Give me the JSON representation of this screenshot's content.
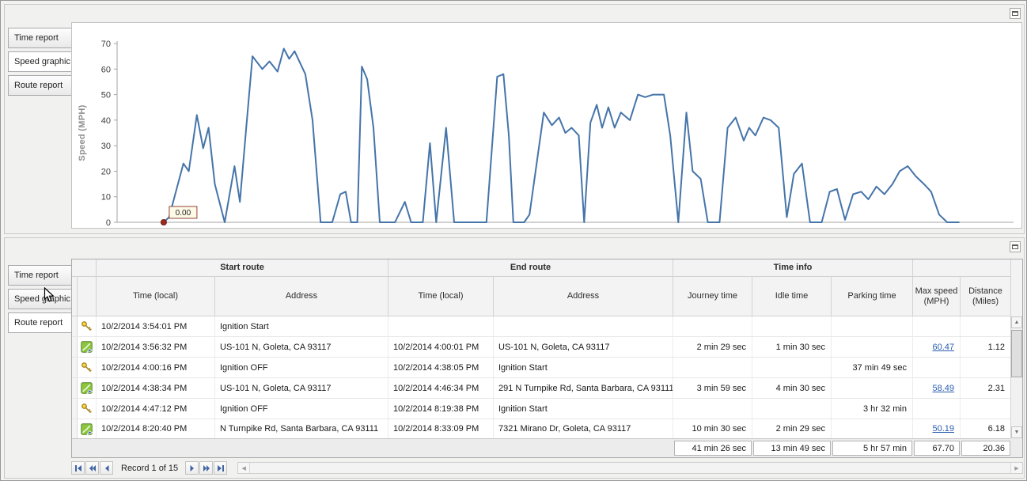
{
  "top_panel": {
    "tabs": [
      {
        "label": "Time report",
        "selected": false
      },
      {
        "label": "Speed graphic",
        "selected": true
      },
      {
        "label": "Route report",
        "selected": false
      }
    ],
    "collapse_icon": "collapse-panel-icon"
  },
  "chart_data": {
    "type": "line",
    "title": "",
    "xlabel": "",
    "ylabel": "Speed (MPH)",
    "ylim": [
      0,
      70
    ],
    "yticks": [
      0,
      10,
      20,
      30,
      40,
      50,
      60,
      70
    ],
    "x_axis_labels_visible": false,
    "grid": "off",
    "legend": "none",
    "line_color": "#4574a9",
    "marker": {
      "x": 5.2,
      "y": 0,
      "label": "0.00",
      "color": "#9c2a21"
    },
    "points": [
      [
        5.2,
        0
      ],
      [
        5.8,
        2
      ],
      [
        7.4,
        23
      ],
      [
        8.0,
        20
      ],
      [
        8.9,
        42
      ],
      [
        9.6,
        29
      ],
      [
        10.2,
        37
      ],
      [
        10.9,
        15
      ],
      [
        12.0,
        0
      ],
      [
        13.1,
        22
      ],
      [
        13.7,
        8
      ],
      [
        14.4,
        37
      ],
      [
        15.1,
        65
      ],
      [
        16.2,
        60
      ],
      [
        17.0,
        63
      ],
      [
        17.9,
        59
      ],
      [
        18.6,
        68
      ],
      [
        19.2,
        64
      ],
      [
        19.8,
        67
      ],
      [
        21.0,
        58
      ],
      [
        21.8,
        40
      ],
      [
        22.7,
        0
      ],
      [
        24.0,
        0
      ],
      [
        24.9,
        11
      ],
      [
        25.5,
        12
      ],
      [
        26.1,
        0
      ],
      [
        26.8,
        0
      ],
      [
        27.3,
        61
      ],
      [
        27.9,
        56
      ],
      [
        28.6,
        37
      ],
      [
        29.3,
        0
      ],
      [
        31.0,
        0
      ],
      [
        32.1,
        8
      ],
      [
        32.8,
        0
      ],
      [
        34.1,
        0
      ],
      [
        34.9,
        31
      ],
      [
        35.6,
        0
      ],
      [
        36.7,
        37
      ],
      [
        37.6,
        0
      ],
      [
        39.7,
        0
      ],
      [
        41.2,
        0
      ],
      [
        42.4,
        57
      ],
      [
        43.1,
        58
      ],
      [
        43.7,
        34
      ],
      [
        44.2,
        0
      ],
      [
        45.4,
        0
      ],
      [
        46.0,
        3
      ],
      [
        47.6,
        43
      ],
      [
        48.5,
        38
      ],
      [
        49.3,
        41
      ],
      [
        50.0,
        35
      ],
      [
        50.7,
        37
      ],
      [
        51.5,
        34
      ],
      [
        52.1,
        0
      ],
      [
        52.8,
        39
      ],
      [
        53.5,
        46
      ],
      [
        54.1,
        37
      ],
      [
        54.8,
        45
      ],
      [
        55.5,
        37
      ],
      [
        56.2,
        43
      ],
      [
        57.2,
        40
      ],
      [
        58.1,
        50
      ],
      [
        58.9,
        49
      ],
      [
        59.8,
        50
      ],
      [
        61.0,
        50
      ],
      [
        61.7,
        34
      ],
      [
        62.6,
        0
      ],
      [
        63.5,
        43
      ],
      [
        64.2,
        20
      ],
      [
        65.1,
        17
      ],
      [
        65.9,
        0
      ],
      [
        67.2,
        0
      ],
      [
        68.1,
        37
      ],
      [
        69.0,
        41
      ],
      [
        69.9,
        32
      ],
      [
        70.5,
        37
      ],
      [
        71.2,
        34
      ],
      [
        72.1,
        41
      ],
      [
        72.9,
        40
      ],
      [
        73.8,
        37
      ],
      [
        74.7,
        2
      ],
      [
        75.5,
        19
      ],
      [
        76.4,
        23
      ],
      [
        77.3,
        0
      ],
      [
        78.6,
        0
      ],
      [
        79.5,
        12
      ],
      [
        80.3,
        13
      ],
      [
        81.2,
        1
      ],
      [
        82.1,
        11
      ],
      [
        83.0,
        12
      ],
      [
        83.8,
        9
      ],
      [
        84.7,
        14
      ],
      [
        85.6,
        11
      ],
      [
        86.5,
        15
      ],
      [
        87.3,
        20
      ],
      [
        88.2,
        22
      ],
      [
        89.1,
        18
      ],
      [
        90.0,
        15
      ],
      [
        90.8,
        12
      ],
      [
        91.7,
        3
      ],
      [
        92.6,
        0
      ],
      [
        93.9,
        0
      ]
    ]
  },
  "bottom_panel": {
    "tabs": [
      {
        "label": "Time report",
        "selected": false
      },
      {
        "label": "Speed graphic",
        "selected": false
      },
      {
        "label": "Route report",
        "selected": true
      }
    ],
    "collapse_icon": "collapse-panel-icon",
    "grid": {
      "column_groups": [
        {
          "label": ""
        },
        {
          "label": "Start route"
        },
        {
          "label": "End route"
        },
        {
          "label": "Time info"
        },
        {
          "label": ""
        }
      ],
      "columns": [
        "Time (local)",
        "Address",
        "Time (local)",
        "Address",
        "Journey time",
        "Idle time",
        "Parking time",
        "Max speed (MPH)",
        "Distance (Miles)"
      ],
      "rows": [
        {
          "icon": "key-icon",
          "max_speed_link": false,
          "cells": [
            "10/2/2014 3:54:01 PM",
            "Ignition Start",
            "",
            "",
            "",
            "",
            "",
            "",
            ""
          ]
        },
        {
          "icon": "route-icon",
          "max_speed_link": true,
          "cells": [
            "10/2/2014 3:56:32 PM",
            "US-101 N, Goleta, CA 93117",
            "10/2/2014 4:00:01 PM",
            "US-101 N, Goleta, CA 93117",
            "2 min 29 sec",
            "1 min 30 sec",
            "",
            "60.47",
            "1.12"
          ]
        },
        {
          "icon": "key-icon",
          "max_speed_link": false,
          "cells": [
            "10/2/2014 4:00:16 PM",
            "Ignition OFF",
            "10/2/2014 4:38:05 PM",
            "Ignition Start",
            "",
            "",
            "37 min 49 sec",
            "",
            ""
          ]
        },
        {
          "icon": "route-icon",
          "max_speed_link": true,
          "cells": [
            "10/2/2014 4:38:34 PM",
            "US-101 N, Goleta, CA 93117",
            "10/2/2014 4:46:34 PM",
            "291 N Turnpike Rd, Santa Barbara, CA 93111",
            "3 min 59 sec",
            "4 min 30 sec",
            "",
            "58.49",
            "2.31"
          ]
        },
        {
          "icon": "key-icon",
          "max_speed_link": false,
          "cells": [
            "10/2/2014 4:47:12 PM",
            "Ignition OFF",
            "10/2/2014 8:19:38 PM",
            "Ignition Start",
            "",
            "",
            "3 hr 32 min",
            "",
            ""
          ]
        },
        {
          "icon": "route-icon",
          "max_speed_link": true,
          "clipped": true,
          "cells": [
            "10/2/2014 8:20:40 PM",
            "N Turnpike Rd, Santa Barbara, CA 93111",
            "10/2/2014 8:33:09 PM",
            "7321 Mirano Dr, Goleta, CA 93117",
            "10 min 30 sec",
            "2 min 29 sec",
            "",
            "50.19",
            "6.18"
          ]
        }
      ],
      "summary": [
        "41 min 26 sec",
        "13 min 49 sec",
        "5 hr 57 min",
        "67.70",
        "20.36"
      ],
      "navigator": {
        "record_text": "Record 1 of 15",
        "buttons": [
          "first-record",
          "previous-page",
          "previous-record",
          "next-record",
          "next-page",
          "last-record"
        ]
      }
    }
  }
}
